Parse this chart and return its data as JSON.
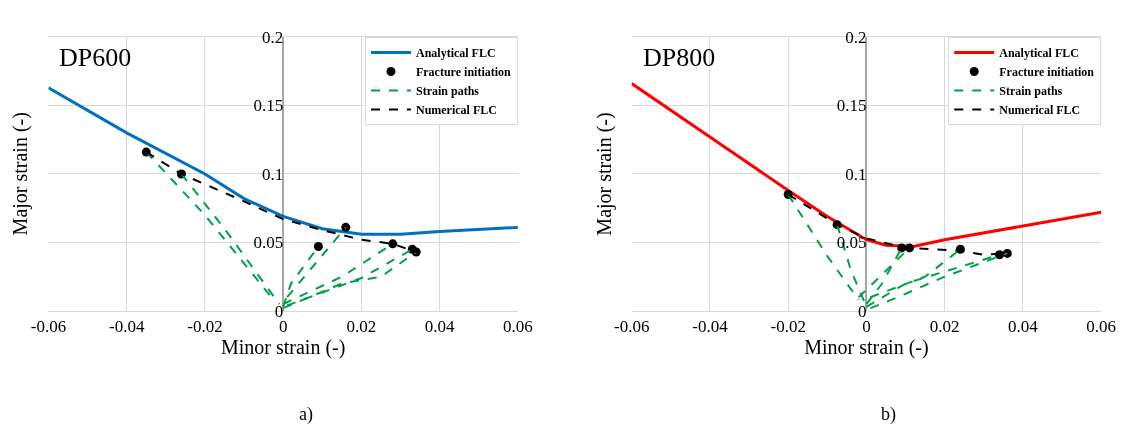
{
  "chart_data": [
    {
      "type": "line",
      "title": "DP600",
      "xlabel": "Minor strain (-)",
      "ylabel": "Major strain (-)",
      "annotations": [
        "a)"
      ],
      "xlim": [
        -0.06,
        0.06
      ],
      "ylim": [
        0,
        0.2
      ],
      "xticks": [
        -0.06,
        -0.04,
        -0.02,
        0,
        0.02,
        0.04,
        0.06
      ],
      "yticks": [
        0,
        0.05,
        0.1,
        0.15,
        0.2
      ],
      "grid": true,
      "legend": "top right",
      "series": [
        {
          "name": "Analytical FLC",
          "color": "#0070c0",
          "line_style": "solid",
          "marker": "none",
          "x": [
            -0.06,
            -0.04,
            -0.02,
            -0.01,
            0,
            0.01,
            0.02,
            0.03,
            0.04,
            0.06
          ],
          "values": [
            0.163,
            0.13,
            0.1,
            0.082,
            0.069,
            0.06,
            0.056,
            0.056,
            0.058,
            0.061
          ]
        },
        {
          "name": "Fracture initiation",
          "type": "scatter",
          "color": "#000000",
          "marker": "circle",
          "x": [
            -0.035,
            -0.026,
            0.009,
            0.016,
            0.028,
            0.033,
            0.034
          ],
          "values": [
            0.116,
            0.1,
            0.047,
            0.061,
            0.049,
            0.045,
            0.043
          ]
        },
        {
          "name": "Strain paths",
          "type": "line",
          "color": "#00a04a",
          "line_style": "dashed",
          "marker": "none",
          "x": [
            -0.035,
            -0.02,
            -0.003,
            null,
            -0.026,
            -0.015,
            -0.001,
            null,
            0,
            0.002,
            0.009,
            null,
            0.001,
            0.016,
            null,
            0,
            0.015,
            0.028,
            null,
            0.001,
            0.02,
            0.033,
            null,
            0,
            0.015,
            0.025,
            0.034
          ],
          "values": [
            0.116,
            0.07,
            0.01,
            null,
            0.1,
            0.06,
            0.005,
            null,
            0.003,
            0.02,
            0.047,
            null,
            0.01,
            0.061,
            null,
            0.005,
            0.025,
            0.049,
            null,
            0.004,
            0.024,
            0.045,
            null,
            0.002,
            0.02,
            0.025,
            0.043
          ]
        },
        {
          "name": "Numerical FLC",
          "type": "line",
          "color": "#000000",
          "line_style": "dashed",
          "marker": "none",
          "x": [
            -0.035,
            -0.026,
            -0.01,
            0,
            0.01,
            0.02,
            0.028,
            0.034
          ],
          "values": [
            0.116,
            0.1,
            0.08,
            0.067,
            0.059,
            0.052,
            0.049,
            0.043
          ]
        }
      ]
    },
    {
      "type": "line",
      "title": "DP800",
      "xlabel": "Minor strain (-)",
      "ylabel": "Major strain (-)",
      "annotations": [
        "b)"
      ],
      "xlim": [
        -0.06,
        0.06
      ],
      "ylim": [
        0,
        0.2
      ],
      "xticks": [
        -0.06,
        -0.04,
        -0.02,
        0,
        0.02,
        0.04,
        0.06
      ],
      "yticks": [
        0,
        0.05,
        0.1,
        0.15,
        0.2
      ],
      "grid": true,
      "legend": "top right",
      "series": [
        {
          "name": "Analytical FLC",
          "color": "#ff0000",
          "line_style": "solid",
          "marker": "none",
          "x": [
            -0.06,
            -0.04,
            -0.02,
            -0.01,
            0,
            0.005,
            0.012,
            0.02,
            0.04,
            0.06
          ],
          "values": [
            0.166,
            0.127,
            0.088,
            0.069,
            0.052,
            0.048,
            0.047,
            0.052,
            0.062,
            0.072
          ]
        },
        {
          "name": "Fracture initiation",
          "type": "scatter",
          "color": "#000000",
          "marker": "circle",
          "x": [
            -0.02,
            -0.0075,
            0.009,
            0.011,
            0.024,
            0.034,
            0.036
          ],
          "values": [
            0.085,
            0.063,
            0.046,
            0.046,
            0.045,
            0.041,
            0.042
          ]
        },
        {
          "name": "Strain paths",
          "type": "line",
          "color": "#00a04a",
          "line_style": "dashed",
          "marker": "none",
          "x": [
            -0.02,
            -0.01,
            -0.002,
            null,
            -0.0075,
            -0.004,
            0,
            null,
            0,
            0.004,
            0.009,
            null,
            -0.002,
            0.011,
            null,
            0.001,
            0.015,
            0.024,
            null,
            0,
            0.01,
            0.034,
            null,
            0.001,
            0.008,
            0.02,
            0.036
          ],
          "values": [
            0.085,
            0.04,
            0.008,
            null,
            0.063,
            0.03,
            0.003,
            null,
            0.005,
            0.02,
            0.046,
            null,
            0.01,
            0.046,
            null,
            0.01,
            0.025,
            0.045,
            null,
            0.003,
            0.02,
            0.041,
            null,
            0.002,
            0.01,
            0.025,
            0.042
          ]
        },
        {
          "name": "Numerical FLC",
          "type": "line",
          "color": "#000000",
          "line_style": "dashed",
          "marker": "none",
          "x": [
            -0.02,
            -0.0075,
            0,
            0.01,
            0.024,
            0.03,
            0.036
          ],
          "values": [
            0.085,
            0.063,
            0.053,
            0.046,
            0.044,
            0.041,
            0.042
          ]
        }
      ]
    }
  ]
}
